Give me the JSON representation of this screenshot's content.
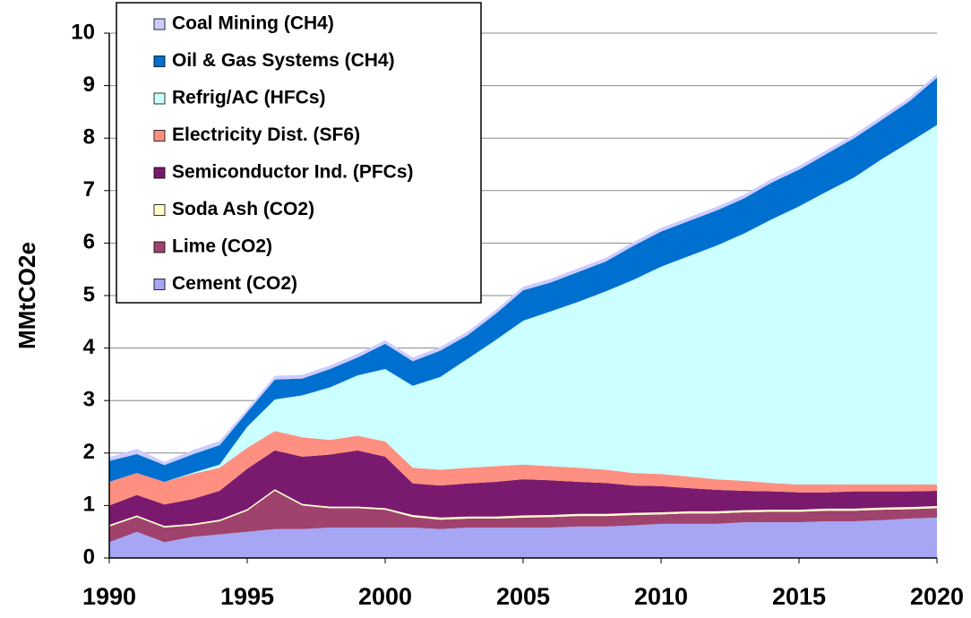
{
  "chart_data": {
    "type": "stacked_area",
    "y_label": "MMtCO2e",
    "x": [
      1990,
      1991,
      1992,
      1993,
      1994,
      1995,
      1996,
      1997,
      1998,
      1999,
      2000,
      2001,
      2002,
      2003,
      2004,
      2005,
      2006,
      2007,
      2008,
      2009,
      2010,
      2011,
      2012,
      2013,
      2014,
      2015,
      2016,
      2017,
      2018,
      2019,
      2020
    ],
    "xlim": [
      1990,
      2020
    ],
    "xticks": [
      1990,
      1995,
      2000,
      2005,
      2010,
      2015,
      2020
    ],
    "ylim": [
      0,
      10
    ],
    "yticks": [
      0,
      1,
      2,
      3,
      4,
      5,
      6,
      7,
      8,
      9,
      10
    ],
    "grid": true,
    "legend": "top-left",
    "series": [
      {
        "name": "Cement (CO2)",
        "color": "#a6a6f5",
        "values": [
          0.3,
          0.5,
          0.3,
          0.4,
          0.45,
          0.5,
          0.55,
          0.55,
          0.58,
          0.58,
          0.58,
          0.58,
          0.55,
          0.58,
          0.58,
          0.58,
          0.58,
          0.6,
          0.6,
          0.62,
          0.65,
          0.65,
          0.65,
          0.68,
          0.68,
          0.68,
          0.7,
          0.7,
          0.72,
          0.75,
          0.77
        ]
      },
      {
        "name": "Lime (CO2)",
        "color": "#a0426e",
        "values": [
          0.3,
          0.28,
          0.28,
          0.22,
          0.25,
          0.4,
          0.73,
          0.45,
          0.37,
          0.37,
          0.34,
          0.2,
          0.18,
          0.17,
          0.17,
          0.19,
          0.2,
          0.2,
          0.2,
          0.2,
          0.18,
          0.2,
          0.2,
          0.19,
          0.2,
          0.2,
          0.2,
          0.2,
          0.2,
          0.18,
          0.18
        ]
      },
      {
        "name": "Soda Ash (CO2)",
        "color": "#ffffcc",
        "values": [
          0.03,
          0.03,
          0.03,
          0.03,
          0.03,
          0.03,
          0.03,
          0.03,
          0.03,
          0.03,
          0.03,
          0.04,
          0.04,
          0.04,
          0.04,
          0.04,
          0.04,
          0.04,
          0.04,
          0.04,
          0.04,
          0.04,
          0.04,
          0.04,
          0.04,
          0.04,
          0.04,
          0.04,
          0.04,
          0.04,
          0.04
        ]
      },
      {
        "name": "Semiconductor Ind. (PFCs)",
        "color": "#7a1a6e",
        "values": [
          0.37,
          0.39,
          0.41,
          0.47,
          0.55,
          0.77,
          0.74,
          0.9,
          0.99,
          1.07,
          0.98,
          0.6,
          0.61,
          0.63,
          0.66,
          0.69,
          0.66,
          0.61,
          0.59,
          0.52,
          0.5,
          0.44,
          0.41,
          0.37,
          0.35,
          0.33,
          0.31,
          0.33,
          0.31,
          0.3,
          0.29
        ]
      },
      {
        "name": "Electricity Dist. (SF6)",
        "color": "#ff8f80",
        "values": [
          0.45,
          0.42,
          0.43,
          0.48,
          0.44,
          0.4,
          0.37,
          0.37,
          0.28,
          0.28,
          0.29,
          0.3,
          0.3,
          0.3,
          0.3,
          0.28,
          0.27,
          0.27,
          0.25,
          0.24,
          0.23,
          0.22,
          0.2,
          0.19,
          0.16,
          0.15,
          0.15,
          0.13,
          0.13,
          0.13,
          0.12
        ]
      },
      {
        "name": "Refrig/AC (HFCs)",
        "color": "#ccffff",
        "values": [
          0,
          0,
          0,
          0.02,
          0.06,
          0.4,
          0.6,
          0.8,
          1.0,
          1.15,
          1.38,
          1.56,
          1.77,
          2.08,
          2.4,
          2.74,
          2.95,
          3.16,
          3.4,
          3.68,
          3.95,
          4.2,
          4.45,
          4.71,
          5.02,
          5.3,
          5.58,
          5.85,
          6.2,
          6.52,
          6.85
        ]
      },
      {
        "name": "Oil & Gas Systems (CH4)",
        "color": "#0070d0",
        "values": [
          0.4,
          0.36,
          0.32,
          0.35,
          0.37,
          0.28,
          0.38,
          0.32,
          0.35,
          0.34,
          0.48,
          0.47,
          0.5,
          0.45,
          0.5,
          0.58,
          0.55,
          0.57,
          0.57,
          0.65,
          0.67,
          0.67,
          0.67,
          0.67,
          0.7,
          0.7,
          0.72,
          0.75,
          0.75,
          0.78,
          0.9
        ]
      },
      {
        "name": "Coal Mining (CH4)",
        "color": "#ccccff",
        "values": [
          0.07,
          0.1,
          0.06,
          0.08,
          0.08,
          0.06,
          0.07,
          0.07,
          0.07,
          0.07,
          0.07,
          0.07,
          0.07,
          0.07,
          0.07,
          0.07,
          0.07,
          0.07,
          0.07,
          0.07,
          0.07,
          0.07,
          0.07,
          0.07,
          0.07,
          0.07,
          0.07,
          0.07,
          0.07,
          0.07,
          0.07
        ]
      }
    ]
  }
}
